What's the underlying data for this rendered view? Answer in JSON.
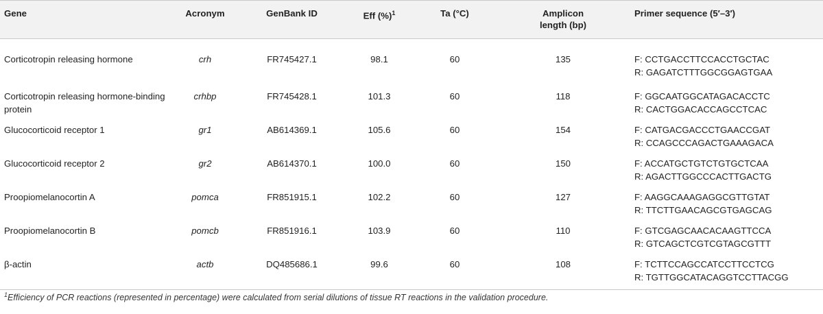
{
  "headers": {
    "gene": "Gene",
    "acronym": "Acronym",
    "genbank": "GenBank ID",
    "eff": "Eff (%)",
    "eff_sup": "1",
    "ta": "Ta (°C)",
    "amplicon": "Amplicon length (bp)",
    "primer": "Primer sequence (5′–3′)"
  },
  "rows": [
    {
      "gene": "Corticotropin releasing hormone",
      "acronym": "crh",
      "genbank": "FR745427.1",
      "eff": "98.1",
      "ta": "60",
      "amplicon": "135",
      "f": "F: CCTGACCTTCCACCTGCTAC",
      "r": "R: GAGATCTTTGGCGGAGTGAA"
    },
    {
      "gene": "Corticotropin releasing hormone-binding protein",
      "acronym": "crhbp",
      "genbank": "FR745428.1",
      "eff": "101.3",
      "ta": "60",
      "amplicon": "118",
      "f": "F: GGCAATGGCATAGACACCTC",
      "r": "R: CACTGGACACCAGCCTCAC"
    },
    {
      "gene": "Glucocorticoid receptor 1",
      "acronym": "gr1",
      "genbank": "AB614369.1",
      "eff": "105.6",
      "ta": "60",
      "amplicon": "154",
      "f": "F: CATGACGACCCTGAACCGAT",
      "r": "R: CCAGCCCAGACTGAAAGACA"
    },
    {
      "gene": "Glucocorticoid receptor 2",
      "acronym": "gr2",
      "genbank": "AB614370.1",
      "eff": "100.0",
      "ta": "60",
      "amplicon": "150",
      "f": "F: ACCATGCTGTCTGTGCTCAA",
      "r": "R: AGACTTGGCCCACTTGACTG"
    },
    {
      "gene": "Proopiomelanocortin A",
      "acronym": "pomca",
      "genbank": "FR851915.1",
      "eff": "102.2",
      "ta": "60",
      "amplicon": "127",
      "f": "F: AAGGCAAAGAGGCGTTGTAT",
      "r": "R: TTCTTGAACAGCGTGAGCAG"
    },
    {
      "gene": "Proopiomelanocortin B",
      "acronym": "pomcb",
      "genbank": "FR851916.1",
      "eff": "103.9",
      "ta": "60",
      "amplicon": "110",
      "f": "F: GTCGAGCAACACAAGTTCCA",
      "r": "R: GTCAGCTCGTCGTAGCGTTT"
    },
    {
      "gene": "β-actin",
      "acronym": "actb",
      "genbank": "DQ485686.1",
      "eff": "99.6",
      "ta": "60",
      "amplicon": "108",
      "f": "F: TCTTCCAGCCATCCTTCCTCG",
      "r": "R: TGTTGGCATACAGGTCCTTACGG"
    }
  ],
  "footnote": {
    "sup": "1",
    "text": "Efficiency of PCR reactions (represented in percentage) were calculated from serial dilutions of tissue RT reactions in the validation procedure."
  }
}
